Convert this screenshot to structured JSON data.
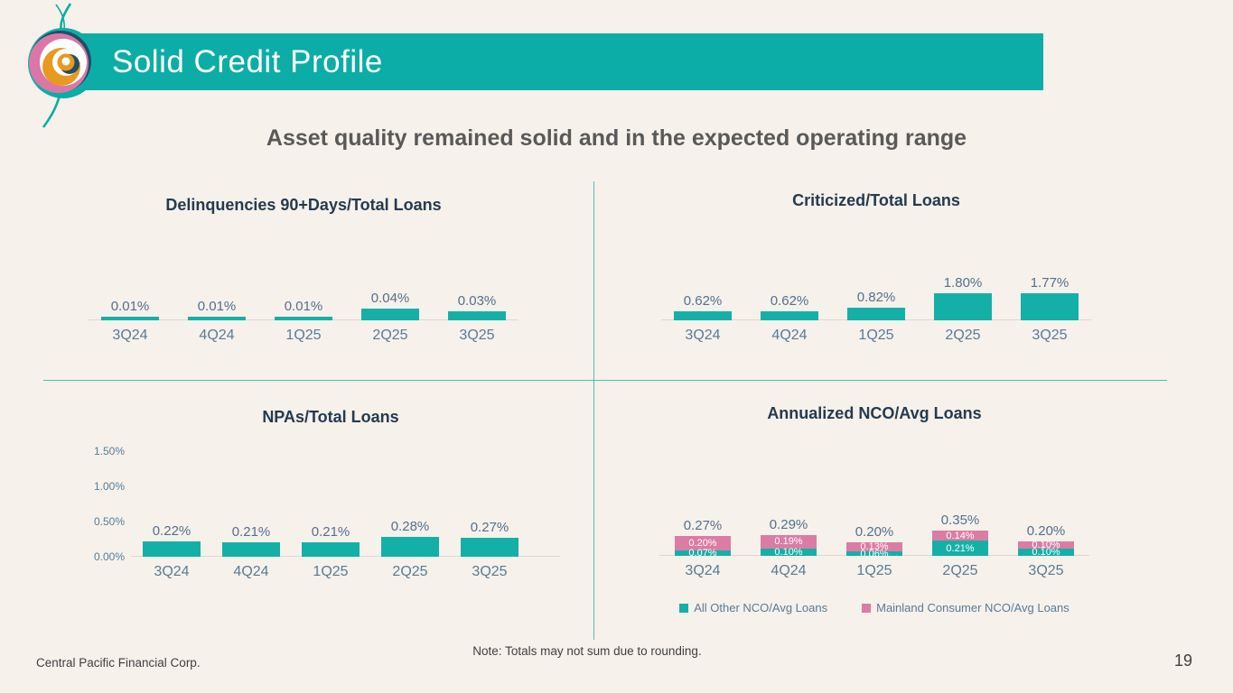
{
  "slide": {
    "title": "Solid Credit Profile",
    "subtitle": "Asset quality remained solid and in the expected operating range",
    "footer_left": "Central Pacific Financial Corp.",
    "footer_note": "Note: Totals may not sum due to rounding.",
    "page_number": "19"
  },
  "colors": {
    "teal": "#14B0A8",
    "pink": "#DB7CA4",
    "banner_teal": "#0CADA6",
    "background": "#F6F1EB",
    "chart_title_navy": "#243B4F",
    "axis_label_blue": "#587B95",
    "value_label_blue": "#53708E",
    "subtitle_gray": "#595959",
    "footer_gray": "#3F3F3F",
    "divider_teal": "#4FBDB6",
    "logo_pink": "#D978A6",
    "logo_orange": "#E8991F",
    "logo_dark": "#1E4F66"
  },
  "chart_data": [
    {
      "id": "delinquencies",
      "type": "bar",
      "title": "Delinquencies 90+Days/Total Loans",
      "categories": [
        "3Q24",
        "4Q24",
        "1Q25",
        "2Q25",
        "3Q25"
      ],
      "values": [
        0.01,
        0.01,
        0.01,
        0.04,
        0.03
      ],
      "labels": [
        "0.01%",
        "0.01%",
        "0.01%",
        "0.04%",
        "0.03%"
      ],
      "unit": "percent",
      "grid": "off",
      "bar_color_key": "teal"
    },
    {
      "id": "criticized",
      "type": "bar",
      "title": "Criticized/Total Loans",
      "categories": [
        "3Q24",
        "4Q24",
        "1Q25",
        "2Q25",
        "3Q25"
      ],
      "values": [
        0.62,
        0.62,
        0.82,
        1.8,
        1.77
      ],
      "labels": [
        "0.62%",
        "0.62%",
        "0.82%",
        "1.80%",
        "1.77%"
      ],
      "unit": "percent",
      "grid": "off",
      "bar_color_key": "teal"
    },
    {
      "id": "npas",
      "type": "bar",
      "title": "NPAs/Total Loans",
      "categories": [
        "3Q24",
        "4Q24",
        "1Q25",
        "2Q25",
        "3Q25"
      ],
      "values": [
        0.22,
        0.21,
        0.21,
        0.28,
        0.27
      ],
      "labels": [
        "0.22%",
        "0.21%",
        "0.21%",
        "0.28%",
        "0.27%"
      ],
      "unit": "percent",
      "grid": "off",
      "bar_color_key": "teal",
      "y_axis": {
        "ylim": [
          0,
          1.5
        ],
        "ticks": [
          {
            "value": 0.0,
            "label": "0.00%"
          },
          {
            "value": 0.5,
            "label": "0.50%"
          },
          {
            "value": 1.0,
            "label": "1.00%"
          },
          {
            "value": 1.5,
            "label": "1.50%"
          }
        ]
      }
    },
    {
      "id": "nco",
      "type": "stacked-bar",
      "title": "Annualized NCO/Avg Loans",
      "categories": [
        "3Q24",
        "4Q24",
        "1Q25",
        "2Q25",
        "3Q25"
      ],
      "series": [
        {
          "name": "All Other NCO/Avg Loans",
          "color_key": "teal",
          "values": [
            0.07,
            0.1,
            0.06,
            0.21,
            0.1
          ],
          "labels": [
            "0.07%",
            "0.10%",
            "0.06%",
            "0.21%",
            "0.10%"
          ]
        },
        {
          "name": "Mainland Consumer NCO/Avg Loans",
          "color_key": "pink",
          "values": [
            0.2,
            0.19,
            0.13,
            0.14,
            0.1
          ],
          "labels": [
            "0.20%",
            "0.19%",
            "0.13%",
            "0.14%",
            "0.10%"
          ]
        }
      ],
      "totals": [
        "0.27%",
        "0.29%",
        "0.20%",
        "0.35%",
        "0.20%"
      ],
      "unit": "percent",
      "grid": "off",
      "legend_position": "bottom",
      "legend": [
        {
          "label": "All Other NCO/Avg Loans",
          "color_key": "teal"
        },
        {
          "label": "Mainland Consumer NCO/Avg Loans",
          "color_key": "pink"
        }
      ]
    }
  ]
}
